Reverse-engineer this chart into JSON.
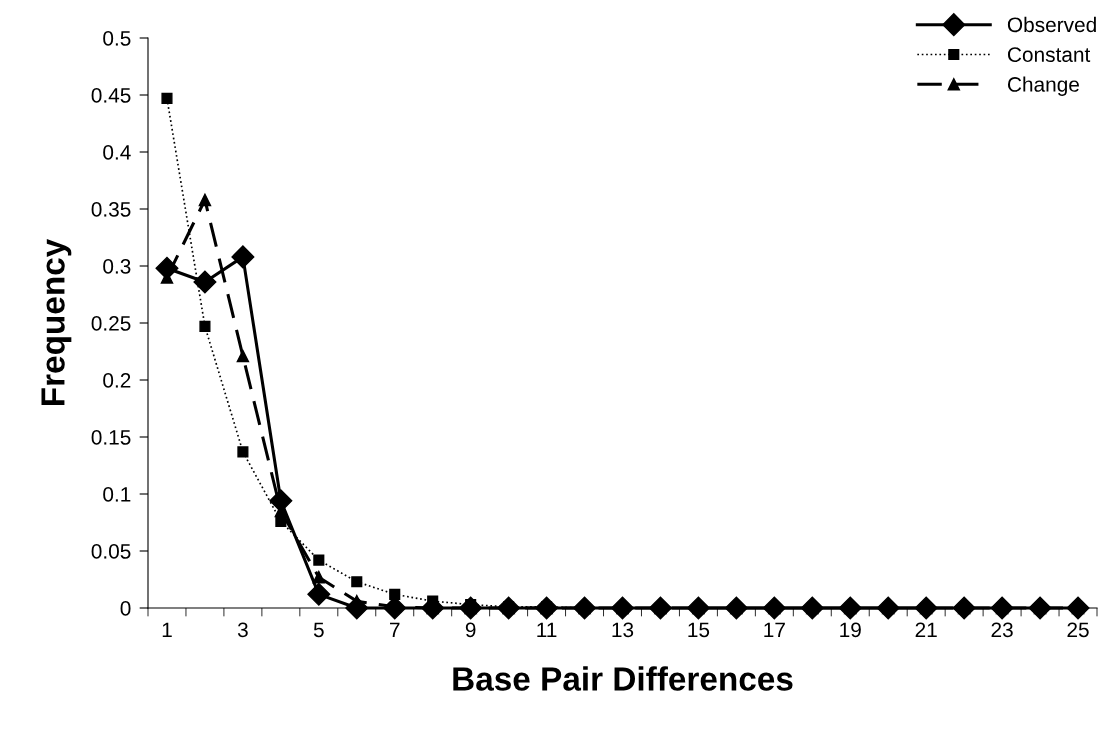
{
  "chart_data": {
    "type": "line",
    "xlabel": "Base Pair Differences",
    "ylabel": "Frequency",
    "categories": [
      "1",
      null,
      "3",
      null,
      "5",
      null,
      "7",
      null,
      "9",
      null,
      "11",
      null,
      "13",
      null,
      "15",
      null,
      "17",
      null,
      "19",
      null,
      "21",
      null,
      "23",
      null,
      "25"
    ],
    "series": [
      {
        "name": "Observed",
        "color": "#000000",
        "marker": "diamond",
        "line_style": "solid",
        "values": [
          0.298,
          0.286,
          0.308,
          0.094,
          0.012,
          0,
          0,
          0,
          0,
          0,
          0,
          0,
          0,
          0,
          0,
          0,
          0,
          0,
          0,
          0,
          0,
          0,
          0,
          0,
          0
        ]
      },
      {
        "name": "Constant",
        "color": "#000000",
        "marker": "square",
        "line_style": "dotted",
        "values": [
          0.447,
          0.247,
          0.137,
          0.076,
          0.042,
          0.023,
          0.012,
          0.006,
          0.003,
          0.001,
          0.001,
          0,
          0,
          0,
          0,
          0,
          0,
          0,
          0,
          0,
          0,
          0,
          0,
          0,
          0
        ]
      },
      {
        "name": "Change",
        "color": "#000000",
        "marker": "triangle",
        "line_style": "dashed",
        "values": [
          0.29,
          0.358,
          0.221,
          0.085,
          0.027,
          0.006,
          0.001,
          0,
          0,
          0,
          0,
          0,
          0,
          0,
          0,
          0,
          0,
          0,
          0,
          0,
          0,
          0,
          0,
          0,
          0
        ]
      }
    ],
    "ylim": [
      0,
      0.5
    ],
    "yticks": [
      0,
      0.05,
      0.1,
      0.15,
      0.2,
      0.25,
      0.3,
      0.35,
      0.4,
      0.45,
      0.5
    ],
    "grid": false,
    "legend": "top right"
  }
}
